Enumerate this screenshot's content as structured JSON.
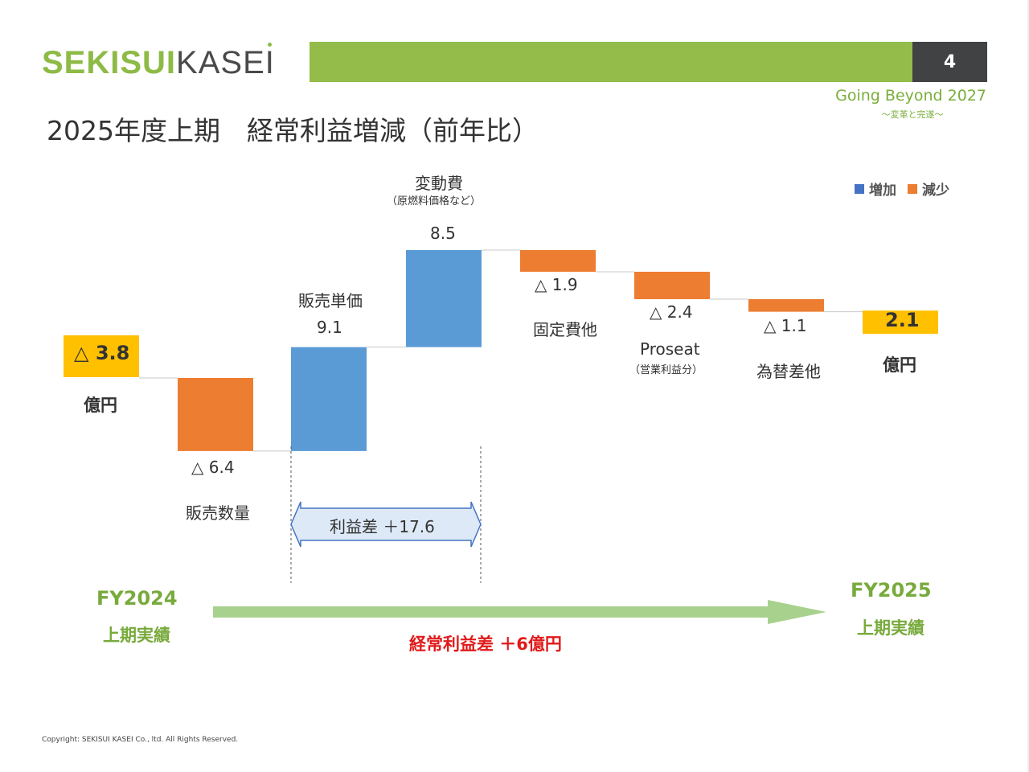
{
  "header": {
    "logo_bold": "SEKISUI",
    "logo_light": "KASEI",
    "page_number": "4",
    "tagline": "Going Beyond 2027",
    "tagline_sub": "～変革と完遂～"
  },
  "title": "2025年度上期　経常利益増減（前年比）",
  "legend": {
    "increase": "増加",
    "decrease": "減少"
  },
  "unit": "億円",
  "colors": {
    "increase": "#5b9bd5",
    "decrease": "#ed7d31",
    "total": "#ffc000",
    "brand": "#94bc4a",
    "arrow": "#a9d18e"
  },
  "chart_data": {
    "type": "waterfall",
    "steps": [
      {
        "category": "",
        "value": -3.8,
        "kind": "total",
        "label": "△ 3.8"
      },
      {
        "category": "販売数量",
        "value": -6.4,
        "kind": "decrease",
        "label": "△ 6.4"
      },
      {
        "category": "販売単価",
        "value": 9.1,
        "kind": "increase",
        "label": "9.1"
      },
      {
        "category": "変動費",
        "category_sub": "（原燃料価格など）",
        "value": 8.5,
        "kind": "increase",
        "label": "8.5"
      },
      {
        "category": "固定費他",
        "value": -1.9,
        "kind": "decrease",
        "label": "△ 1.9"
      },
      {
        "category": "Proseat",
        "category_sub": "（営業利益分）",
        "value": -2.4,
        "kind": "decrease",
        "label": "△ 2.4"
      },
      {
        "category": "為替差他",
        "value": -1.1,
        "kind": "decrease",
        "label": "△ 1.1"
      },
      {
        "category": "",
        "value": 2.1,
        "kind": "total",
        "label": "2.1"
      }
    ]
  },
  "annotations": {
    "margin_label": "利益差 ＋17.6",
    "from_year": "FY2024",
    "from_sub": "上期実績",
    "to_year": "FY2025",
    "to_sub": "上期実績",
    "diff": "経常利益差 ＋6億円"
  },
  "copyright": "Copyright: SEKISUI KASEI Co., ltd. All Rights Reserved."
}
